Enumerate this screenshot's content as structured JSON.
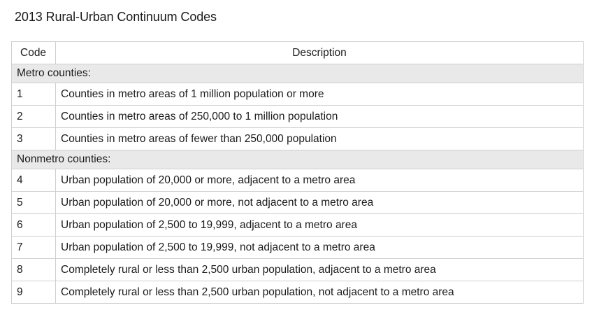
{
  "title": "2013 Rural-Urban Continuum Codes",
  "table": {
    "headers": {
      "code": "Code",
      "description": "Description"
    },
    "groups": [
      {
        "label": "Metro counties:",
        "rows": [
          {
            "code": "1",
            "description": "Counties in metro areas of 1 million population or more"
          },
          {
            "code": "2",
            "description": "Counties in metro areas of 250,000 to 1 million population"
          },
          {
            "code": "3",
            "description": "Counties in metro areas of fewer than 250,000 population"
          }
        ]
      },
      {
        "label": "Nonmetro counties:",
        "rows": [
          {
            "code": "4",
            "description": "Urban population of 20,000 or more, adjacent to a metro area"
          },
          {
            "code": "5",
            "description": "Urban population of 20,000 or more, not adjacent to a metro area"
          },
          {
            "code": "6",
            "description": "Urban population of 2,500 to 19,999, adjacent to a metro area"
          },
          {
            "code": "7",
            "description": "Urban population of 2,500 to 19,999, not adjacent to a metro area"
          },
          {
            "code": "8",
            "description": "Completely rural or less than 2,500 urban population, adjacent to a metro area"
          },
          {
            "code": "9",
            "description": "Completely rural or less than 2,500 urban population, not adjacent to a metro area"
          }
        ]
      }
    ]
  }
}
